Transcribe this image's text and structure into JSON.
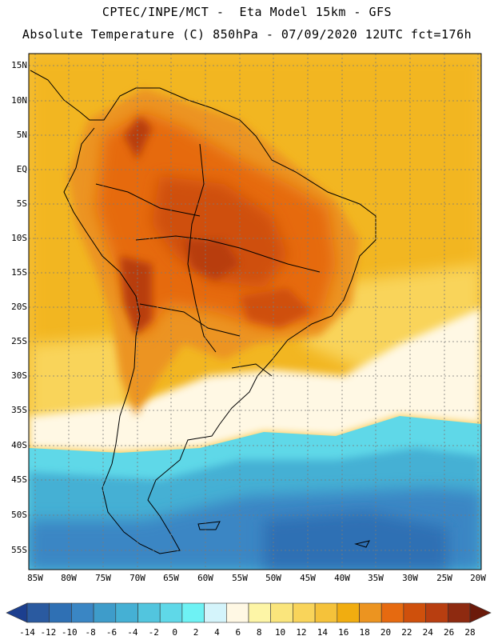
{
  "header": {
    "line1": "CPTEC/INPE/MCT -  Eta Model 15km - GFS",
    "line2": "Absolute Temperature (C) 850hPa - 07/09/2020 12UTC fct=176h"
  },
  "map": {
    "lat_labels": [
      "15N",
      "10N",
      "5N",
      "EQ",
      "5S",
      "10S",
      "15S",
      "20S",
      "25S",
      "30S",
      "35S",
      "40S",
      "45S",
      "50S",
      "55S"
    ],
    "lon_labels": [
      "85W",
      "80W",
      "75W",
      "70W",
      "65W",
      "60W",
      "55W",
      "50W",
      "45W",
      "40W",
      "35W",
      "30W",
      "25W",
      "20W"
    ],
    "lon_range": [
      -86,
      -19
    ],
    "lat_range": [
      -58,
      16
    ]
  },
  "colorbar": {
    "labels": [
      "-14",
      "-12",
      "-10",
      "-8",
      "-6",
      "-4",
      "-2",
      "0",
      "2",
      "4",
      "6",
      "8",
      "10",
      "12",
      "14",
      "16",
      "18",
      "20",
      "22",
      "24",
      "26",
      "28"
    ],
    "colors": [
      "#1c3f8f",
      "#2a5aa0",
      "#2f70b4",
      "#3a86c4",
      "#3e9cca",
      "#45b0d4",
      "#52c5de",
      "#5fd8e8",
      "#6ef2f4",
      "#d4f4fb",
      "#fff8e4",
      "#fdf5a6",
      "#fae57c",
      "#f9d45a",
      "#f5c23a",
      "#f1ad10",
      "#ec9420",
      "#e66a10",
      "#cf500c",
      "#b83e10",
      "#8e2a10",
      "#6b1a0a"
    ]
  }
}
